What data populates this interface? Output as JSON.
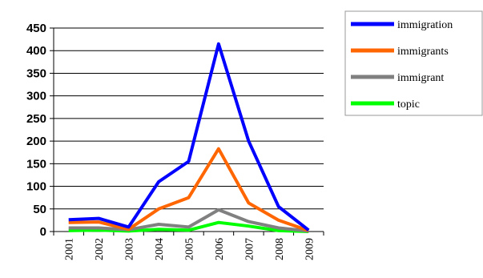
{
  "chart_data": {
    "type": "line",
    "title": "",
    "xlabel": "",
    "ylabel": "",
    "x": [
      "2001",
      "2002",
      "2003",
      "2004",
      "2005",
      "2006",
      "2007",
      "2008",
      "2009"
    ],
    "yticks": [
      "0",
      "50",
      "100",
      "150",
      "200",
      "250",
      "300",
      "350",
      "400",
      "450"
    ],
    "ylim": [
      0,
      450
    ],
    "grid": "horizontal",
    "legend_position": "top-right",
    "series": [
      {
        "name": "immigration",
        "color": "#0000ff",
        "values": [
          26,
          29,
          10,
          110,
          155,
          415,
          200,
          55,
          3
        ]
      },
      {
        "name": "immigrants",
        "color": "#ff6600",
        "values": [
          20,
          21,
          5,
          50,
          75,
          183,
          63,
          25,
          2
        ]
      },
      {
        "name": "immigrant",
        "color": "#808080",
        "values": [
          8,
          8,
          4,
          16,
          10,
          48,
          22,
          8,
          1
        ]
      },
      {
        "name": "topic",
        "color": "#00ff00",
        "values": [
          2,
          3,
          1,
          5,
          3,
          20,
          12,
          2,
          0
        ]
      }
    ]
  }
}
